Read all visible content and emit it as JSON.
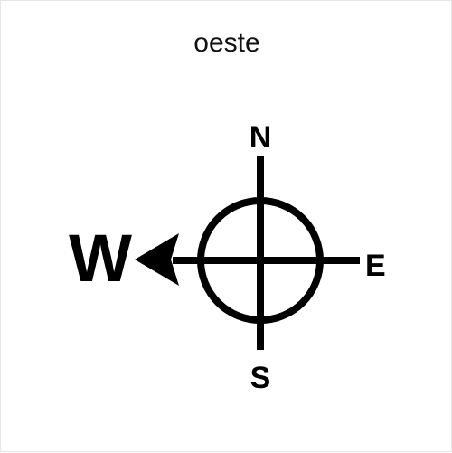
{
  "caption": "oeste",
  "compass": {
    "north": "N",
    "south": "S",
    "east": "E",
    "west": "W",
    "highlighted_direction": "west",
    "ink_color": "#000000"
  }
}
